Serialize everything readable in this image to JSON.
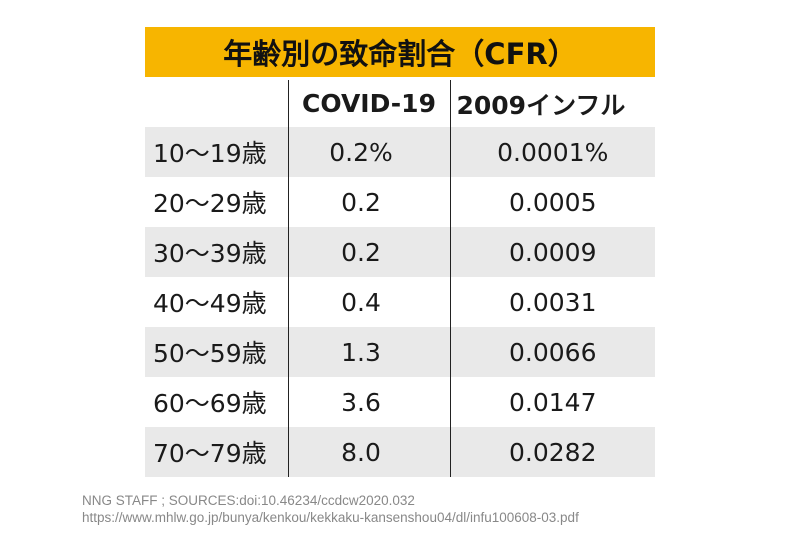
{
  "title": "年齢別の致命割合（CFR）",
  "chart_data": {
    "type": "table",
    "columns": [
      "",
      "COVID-19",
      "2009インフル"
    ],
    "rows": [
      {
        "age": "10〜19歳",
        "covid": "0.2%",
        "flu": "0.0001%"
      },
      {
        "age": "20〜29歳",
        "covid": "0.2",
        "flu": "0.0005"
      },
      {
        "age": "30〜39歳",
        "covid": "0.2",
        "flu": "0.0009"
      },
      {
        "age": "40〜49歳",
        "covid": "0.4",
        "flu": "0.0031"
      },
      {
        "age": "50〜59歳",
        "covid": "1.3",
        "flu": "0.0066"
      },
      {
        "age": "60〜69歳",
        "covid": "3.6",
        "flu": "0.0147"
      },
      {
        "age": "70〜79歳",
        "covid": "8.0",
        "flu": "0.0282"
      }
    ]
  },
  "source": {
    "line1": "NNG STAFF ; SOURCES:doi:10.46234/ccdcw2020.032",
    "line2": "https://www.mhlw.go.jp/bunya/kenkou/kekkaku-kansenshou04/dl/infu100608-03.pdf"
  },
  "colors": {
    "title_bg": "#f7b500",
    "row_shade": "#e9e9e9"
  }
}
